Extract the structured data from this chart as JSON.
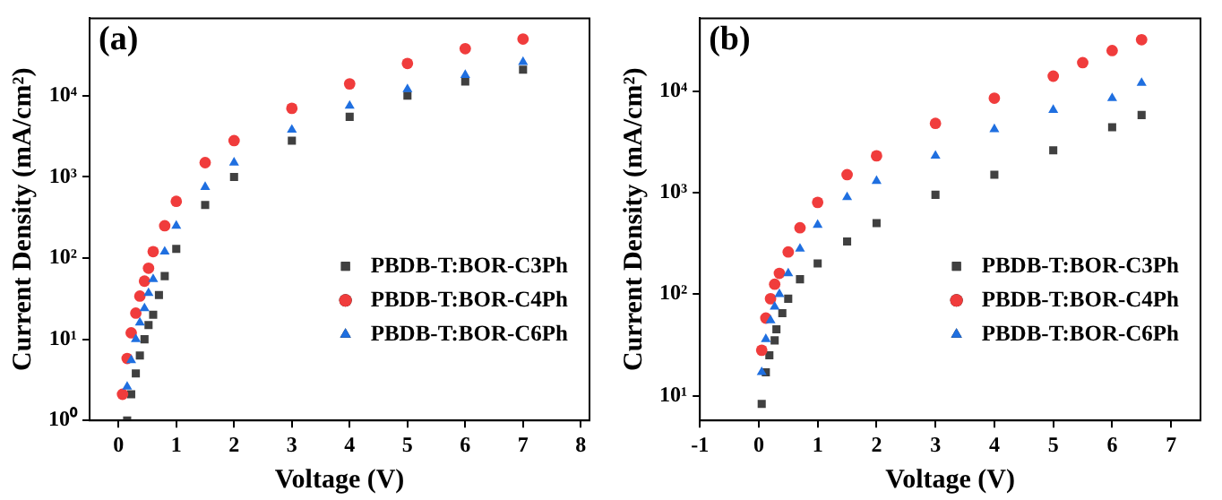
{
  "chart_data": [
    {
      "type": "scatter",
      "title": "(a)",
      "xlabel": "Voltage (V)",
      "ylabel": "Current Density (mA/cm²)",
      "log": "y",
      "legend": "bottom right",
      "xlim": [
        -0.5,
        8.15
      ],
      "xticks": [
        0,
        1,
        2,
        3,
        4,
        5,
        6,
        7,
        8
      ],
      "ylim": [
        1,
        90000
      ],
      "yticks": [
        {
          "value": 1,
          "label": "10⁰"
        },
        {
          "value": 10,
          "label": "10¹"
        },
        {
          "value": 100,
          "label": "10²"
        },
        {
          "value": 1000,
          "label": "10³"
        },
        {
          "value": 10000,
          "label": "10⁴"
        }
      ],
      "series": [
        {
          "name": "PBDB-T:BOR-C3Ph",
          "color": "#404040",
          "marker": "square",
          "x": [
            0.15,
            0.22,
            0.3,
            0.37,
            0.45,
            0.52,
            0.6,
            0.7,
            0.8,
            1,
            1.5,
            2,
            3,
            4,
            5,
            6,
            7
          ],
          "values": [
            1,
            2.1,
            3.8,
            6.3,
            10,
            15,
            20,
            35,
            60,
            130,
            450,
            1000,
            2800,
            5500,
            10000,
            15000,
            21000
          ]
        },
        {
          "name": "PBDB-T:BOR-C4Ph",
          "color": "#f03c3c",
          "marker": "circle",
          "x": [
            0.07,
            0.15,
            0.22,
            0.3,
            0.37,
            0.45,
            0.52,
            0.6,
            0.8,
            1,
            1.5,
            2,
            3,
            4,
            5,
            6,
            7
          ],
          "values": [
            2.1,
            5.8,
            12,
            21,
            34,
            52,
            75,
            120,
            250,
            500,
            1500,
            2800,
            7000,
            14000,
            25000,
            38000,
            50000
          ]
        },
        {
          "name": "PBDB-T:BOR-C6Ph",
          "color": "#1f6fe0",
          "marker": "triangle",
          "x": [
            0.15,
            0.22,
            0.3,
            0.37,
            0.45,
            0.52,
            0.6,
            0.8,
            1,
            1.5,
            2,
            3,
            4,
            5,
            6,
            7
          ],
          "values": [
            2.6,
            5.5,
            10,
            16,
            24,
            37,
            55,
            120,
            250,
            750,
            1500,
            3800,
            7500,
            12000,
            18000,
            26000
          ]
        }
      ]
    },
    {
      "type": "scatter",
      "title": "(b)",
      "xlabel": "Voltage (V)",
      "ylabel": "Current Density (mA/cm²)",
      "log": "y",
      "legend": "bottom right",
      "xlim": [
        -1,
        7.5
      ],
      "xticks": [
        -1,
        0,
        1,
        2,
        3,
        4,
        5,
        6,
        7
      ],
      "ylim": [
        5.7,
        52000
      ],
      "yticks": [
        {
          "value": 10,
          "label": "10¹"
        },
        {
          "value": 100,
          "label": "10²"
        },
        {
          "value": 1000,
          "label": "10³"
        },
        {
          "value": 10000,
          "label": "10⁴"
        }
      ],
      "series": [
        {
          "name": "PBDB-T:BOR-C3Ph",
          "color": "#404040",
          "marker": "square",
          "x": [
            0.05,
            0.12,
            0.18,
            0.27,
            0.3,
            0.4,
            0.5,
            0.7,
            1,
            1.5,
            2,
            3,
            4,
            5,
            6,
            6.5
          ],
          "values": [
            8.3,
            17,
            25,
            35,
            45,
            65,
            90,
            140,
            200,
            330,
            500,
            950,
            1500,
            2600,
            4400,
            5800
          ]
        },
        {
          "name": "PBDB-T:BOR-C4Ph",
          "color": "#f03c3c",
          "marker": "circle",
          "x": [
            0.05,
            0.12,
            0.2,
            0.27,
            0.35,
            0.5,
            0.7,
            1,
            1.5,
            2,
            3,
            4,
            5,
            5.5,
            6,
            6.5
          ],
          "values": [
            28,
            58,
            90,
            125,
            160,
            260,
            450,
            800,
            1500,
            2300,
            4800,
            8500,
            14000,
            19000,
            25000,
            32000
          ]
        },
        {
          "name": "PBDB-T:BOR-C6Ph",
          "color": "#1f6fe0",
          "marker": "triangle",
          "x": [
            0.05,
            0.12,
            0.2,
            0.27,
            0.35,
            0.5,
            0.7,
            1,
            1.5,
            2,
            3,
            4,
            5,
            6,
            6.5
          ],
          "values": [
            17,
            36,
            55,
            75,
            100,
            160,
            280,
            480,
            900,
            1300,
            2300,
            4200,
            6500,
            8500,
            12000
          ]
        }
      ]
    }
  ]
}
